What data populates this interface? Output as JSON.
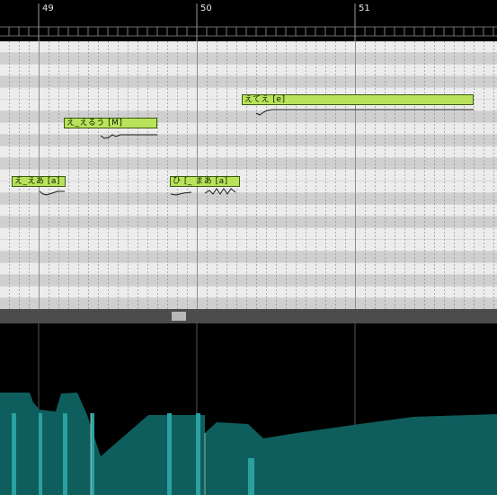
{
  "ruler": {
    "bars": [
      {
        "label": "49"
      },
      {
        "label": "50"
      },
      {
        "label": "51"
      }
    ]
  },
  "notes": [
    {
      "lyric": "え_えあ [a]"
    },
    {
      "lyric": "え_えるう [M]"
    },
    {
      "lyric": "ひ [_ まあ [a]"
    },
    {
      "lyric": "えてえ [e]"
    }
  ],
  "colors": {
    "note_fill": "#b9e35a",
    "parameter_fill": "#0e5e5e",
    "parameter_highlight": "#2aa0a0",
    "lane_dark": "#cfcfcf",
    "lane_light": "#ececec"
  },
  "icons": {
    "vibrato": "vibrato-wave-icon",
    "scroll_thumb": "scroll-thumb"
  }
}
